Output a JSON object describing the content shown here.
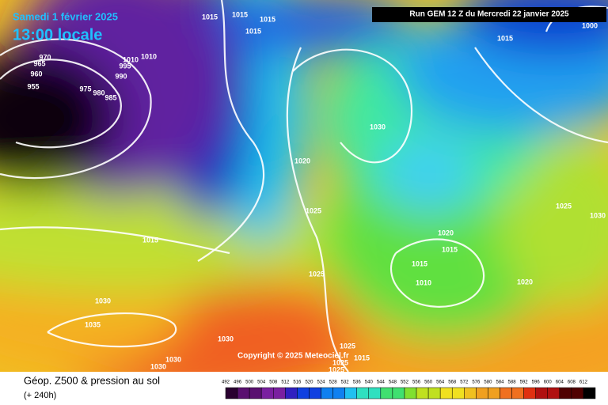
{
  "header": {
    "date": "Samedi 1 février 2025",
    "time": "13:00 locale",
    "run": "Run GEM 12 Z du Mercredi 22 janvier 2025"
  },
  "copyright": "Copyright © 2025 Meteociel.fr",
  "isobar_labels": [
    1015,
    1015,
    1015,
    1015,
    1010,
    1010,
    995,
    990,
    970,
    965,
    960,
    955,
    975,
    980,
    985,
    1000,
    1015,
    1030,
    1020,
    1025,
    1025,
    1030,
    1020,
    1015,
    1015,
    1010,
    1025,
    1020,
    1015,
    1030,
    1035,
    1030,
    1030,
    1030,
    1025,
    1025,
    1015,
    1025
  ],
  "legend": {
    "title": "Géop. Z500 & pression au sol",
    "lead": "(+ 240h)",
    "scale": [
      492,
      496,
      500,
      504,
      508,
      512,
      516,
      520,
      524,
      528,
      532,
      536,
      540,
      544,
      548,
      552,
      556,
      560,
      564,
      568,
      572,
      576,
      580,
      584,
      588,
      592,
      596,
      600,
      604,
      608,
      612
    ]
  }
}
